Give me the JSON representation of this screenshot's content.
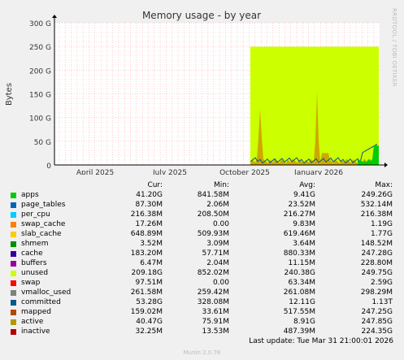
{
  "chart_data": {
    "type": "area",
    "title": "Memory usage - by year",
    "ylabel": "Bytes",
    "ylim": [
      0,
      300
    ],
    "yticks": [
      "0",
      "50 G",
      "100 G",
      "150 G",
      "200 G",
      "250 G",
      "300 G"
    ],
    "xticks": [
      "April 2025",
      "July 2025",
      "October 2025",
      "January 2026"
    ],
    "grid": true,
    "series": [
      {
        "name": "unused",
        "color": "#ccff00",
        "start": "Oct 2025",
        "end": "Mar 2026",
        "level": 249.5
      },
      {
        "name": "active",
        "color": "#cc9900",
        "peaks": [
          {
            "at": "Oct 2025",
            "value": 117
          },
          {
            "at": "Dec 2025",
            "value": 155
          }
        ]
      },
      {
        "name": "apps",
        "color": "#00cc00",
        "final": 41
      }
    ]
  },
  "legend": {
    "headers": {
      "cur": "Cur:",
      "min": "Min:",
      "avg": "Avg:",
      "max": "Max:"
    },
    "rows": [
      {
        "name": "apps",
        "color": "#00cc00",
        "cur": "41.20G",
        "min": "841.58M",
        "avg": "9.41G",
        "max": "249.26G"
      },
      {
        "name": "page_tables",
        "color": "#0066b3",
        "cur": "87.30M",
        "min": "2.06M",
        "avg": "23.52M",
        "max": "532.14M"
      },
      {
        "name": "per_cpu",
        "color": "#00ccff",
        "cur": "216.38M",
        "min": "208.50M",
        "avg": "216.27M",
        "max": "216.38M"
      },
      {
        "name": "swap_cache",
        "color": "#ff8000",
        "cur": "17.26M",
        "min": "0.00",
        "avg": "9.83M",
        "max": "1.19G"
      },
      {
        "name": "slab_cache",
        "color": "#ffcc00",
        "cur": "648.89M",
        "min": "509.93M",
        "avg": "619.46M",
        "max": "1.77G"
      },
      {
        "name": "shmem",
        "color": "#008f00",
        "cur": "3.52M",
        "min": "3.09M",
        "avg": "3.64M",
        "max": "148.52M"
      },
      {
        "name": "cache",
        "color": "#330099",
        "cur": "183.20M",
        "min": "57.71M",
        "avg": "880.33M",
        "max": "247.28G"
      },
      {
        "name": "buffers",
        "color": "#990099",
        "cur": "6.47M",
        "min": "2.04M",
        "avg": "11.15M",
        "max": "228.80M"
      },
      {
        "name": "unused",
        "color": "#ccff00",
        "cur": "209.18G",
        "min": "852.02M",
        "avg": "240.38G",
        "max": "249.75G"
      },
      {
        "name": "swap",
        "color": "#ff0000",
        "cur": "97.51M",
        "min": "0.00",
        "avg": "63.34M",
        "max": "2.59G"
      },
      {
        "name": "vmalloc_used",
        "color": "#808080",
        "cur": "261.58M",
        "min": "259.42M",
        "avg": "261.08M",
        "max": "298.29M"
      },
      {
        "name": "committed",
        "color": "#005a8a",
        "cur": "53.28G",
        "min": "328.08M",
        "avg": "12.11G",
        "max": "1.13T"
      },
      {
        "name": "mapped",
        "color": "#b34700",
        "cur": "159.02M",
        "min": "33.61M",
        "avg": "517.55M",
        "max": "247.25G"
      },
      {
        "name": "active",
        "color": "#b39900",
        "cur": "40.47G",
        "min": "75.91M",
        "avg": "8.91G",
        "max": "247.85G"
      },
      {
        "name": "inactive",
        "color": "#b30000",
        "cur": "32.25M",
        "min": "13.53M",
        "avg": "487.39M",
        "max": "224.35G"
      }
    ]
  },
  "footer": {
    "last_update": "Last update: Tue Mar 31 21:00:01 2026",
    "munin": "Munin 2.0.76",
    "rrdtool": "RRDTOOL / TOBI OETIKER"
  }
}
